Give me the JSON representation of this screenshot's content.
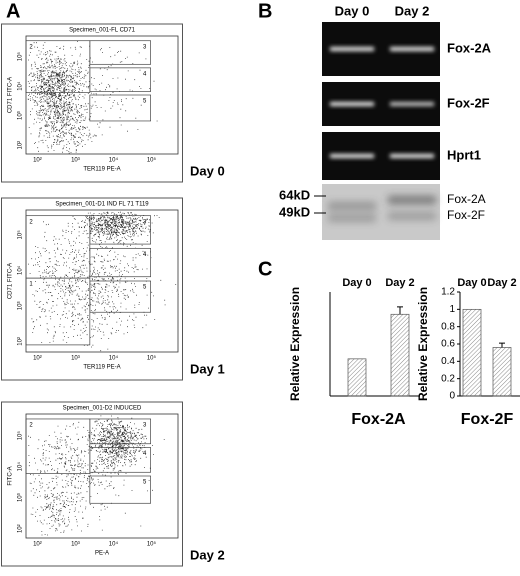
{
  "panel_a": {
    "label": "A",
    "plots": [
      {
        "title": "Specimen_001-FL CD71",
        "y_label": "CD71 FITC-A",
        "x_label": "TER119 PE-A",
        "gates": [
          "2",
          "3",
          "4",
          "5"
        ],
        "day": "Day 0"
      },
      {
        "title": "Specimen_001-D1 IND FL 71 T119",
        "y_label": "CD71 FITC-A",
        "x_label": "TER119 PE-A",
        "gates": [
          "2",
          "3",
          "4",
          "5",
          "1"
        ],
        "day": "Day 1"
      },
      {
        "title": "Specimen_001-D2 INDUCED",
        "y_label": "FITC-A",
        "x_label": "PE-A",
        "gates": [
          "2",
          "3",
          "4",
          "5"
        ],
        "day": "Day 2"
      }
    ],
    "axis_ticks": [
      "10²",
      "10³",
      "10⁴",
      "10⁵"
    ]
  },
  "panel_b": {
    "label": "B",
    "columns": [
      "Day 0",
      "Day 2"
    ],
    "gels": [
      "Fox-2A",
      "Fox-2F",
      "Hprt1"
    ],
    "markers": [
      "64kD",
      "49kD"
    ],
    "bands": [
      "Fox-2A",
      "Fox-2F"
    ]
  },
  "panel_c": {
    "label": "C"
  },
  "chart_data": [
    {
      "type": "bar",
      "title": "Fox-2A",
      "y_label": "Relative Expression",
      "categories": [
        "Day 0",
        "Day 2"
      ],
      "values": [
        1,
        2.2
      ],
      "errors": [
        null,
        0.2
      ],
      "color": "#888888",
      "ylim": [
        0,
        2.8
      ]
    },
    {
      "type": "bar",
      "title": "Fox-2F",
      "y_label": "Relative Expression",
      "categories": [
        "Day 0",
        "Day 2"
      ],
      "values": [
        1,
        0.56
      ],
      "errors": [
        null,
        0.05
      ],
      "color": "#888888",
      "ylim": [
        0,
        1.2
      ],
      "yticks": [
        0,
        0.2,
        0.4,
        0.6,
        0.8,
        1,
        1.2
      ]
    }
  ]
}
